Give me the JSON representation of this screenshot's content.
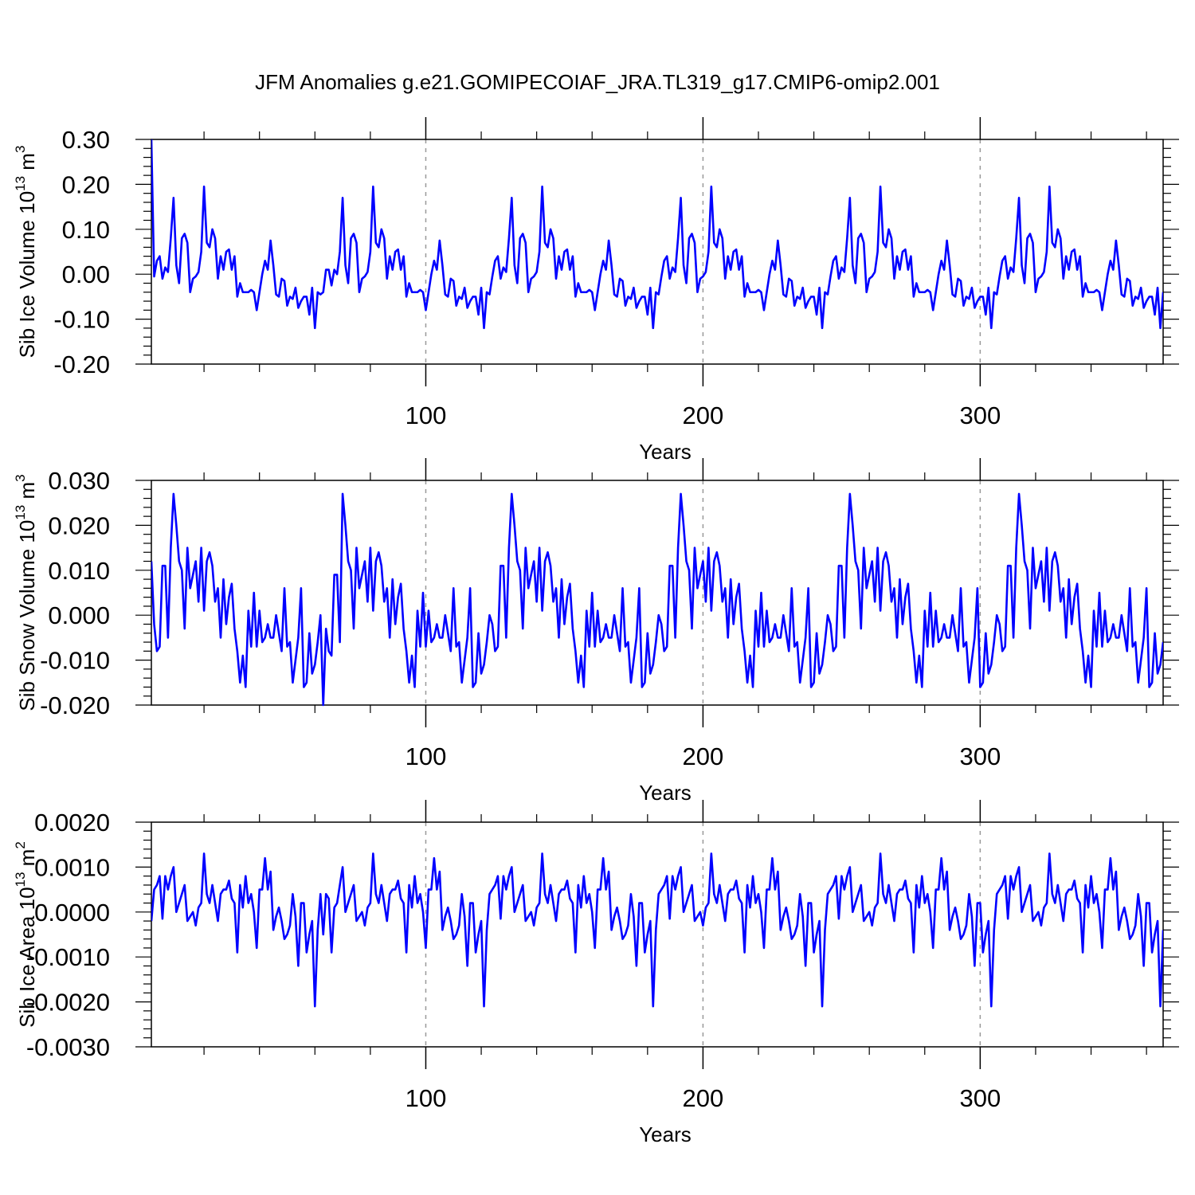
{
  "title": "JFM Anomalies g.e21.GOMIPECOIAF_JRA.TL319_g17.CMIP6-omip2.001",
  "chart_data": [
    {
      "type": "line",
      "ylabel": "Sib Ice Volume 10",
      "ylabel_sup": "13",
      "ylabel_unit": "m",
      "ylabel_unit_sup": "3",
      "xlabel": "Years",
      "xlim": [
        1,
        366
      ],
      "ylim": [
        -0.2,
        0.3
      ],
      "yticks": [
        0.3,
        0.2,
        0.1,
        0.0,
        -0.1,
        -0.2
      ],
      "ytick_labels": [
        "0.30",
        "0.20",
        "0.10",
        "0.00",
        "-0.10",
        "-0.20"
      ],
      "xticks": [
        100,
        200,
        300
      ],
      "xtick_labels": [
        "100",
        "200",
        "300"
      ],
      "color": "#0000ff",
      "base_cycle": [
        0.3,
        -0.005,
        0.03,
        0.04,
        -0.01,
        0.015,
        0.005,
        0.08,
        0.17,
        0.02,
        -0.02,
        0.08,
        0.09,
        0.07,
        -0.04,
        -0.01,
        -0.005,
        0.005,
        0.05,
        0.195,
        0.07,
        0.06,
        0.1,
        0.08,
        -0.01,
        0.04,
        0.01,
        0.05,
        0.055,
        0.01,
        0.04,
        -0.05,
        -0.02,
        -0.04,
        -0.04,
        -0.04,
        -0.035,
        -0.04,
        -0.08,
        -0.04,
        0.0,
        0.03,
        0.01,
        0.075,
        0.02,
        -0.045,
        -0.05,
        -0.01,
        -0.015,
        -0.07,
        -0.05,
        -0.055,
        -0.03,
        -0.075,
        -0.06,
        -0.05,
        -0.05,
        -0.09,
        -0.03,
        -0.12,
        -0.04,
        -0.045,
        -0.04,
        0.01,
        0.01,
        -0.025,
        0.01,
        0.0,
        0.05
      ],
      "year_notes": "Values for years 70-366 repeat the base_cycle pattern with period 61 years (series begins at year 1)."
    },
    {
      "type": "line",
      "ylabel": "Sib Snow Volume 10",
      "ylabel_sup": "13",
      "ylabel_unit": "m",
      "ylabel_unit_sup": "3",
      "xlabel": "Years",
      "xlim": [
        1,
        366
      ],
      "ylim": [
        -0.02,
        0.03
      ],
      "yticks": [
        0.03,
        0.02,
        0.01,
        0.0,
        -0.01,
        -0.02
      ],
      "ytick_labels": [
        "0.030",
        "0.020",
        "0.010",
        "0.000",
        "-0.010",
        "-0.020"
      ],
      "xticks": [
        100,
        200,
        300
      ],
      "xtick_labels": [
        "100",
        "200",
        "300"
      ],
      "color": "#0000ff",
      "base_cycle": [
        0.012,
        -0.002,
        -0.008,
        -0.007,
        0.011,
        0.011,
        -0.005,
        0.015,
        0.027,
        0.02,
        0.012,
        0.01,
        -0.003,
        0.015,
        0.006,
        0.009,
        0.012,
        0.003,
        0.015,
        0.001,
        0.012,
        0.014,
        0.011,
        0.003,
        0.006,
        -0.005,
        0.008,
        -0.002,
        0.004,
        0.007,
        -0.003,
        -0.008,
        -0.015,
        -0.009,
        -0.016,
        0.001,
        -0.007,
        0.005,
        -0.007,
        0.001,
        -0.006,
        -0.005,
        -0.002,
        -0.005,
        -0.005,
        0.0,
        -0.004,
        -0.008,
        0.006,
        -0.007,
        -0.006,
        -0.015,
        -0.01,
        -0.005,
        0.006,
        -0.016,
        -0.015,
        -0.004,
        -0.013,
        -0.011,
        -0.006,
        0.0,
        -0.02,
        -0.003,
        -0.008,
        -0.009,
        0.009,
        0.009,
        -0.006
      ],
      "year_notes": "Values repeat with period 61 years across years 1-366."
    },
    {
      "type": "line",
      "ylabel": "Sib Ice Area 10",
      "ylabel_sup": "13",
      "ylabel_unit": "m",
      "ylabel_unit_sup": "2",
      "xlabel": "Years",
      "xlim": [
        1,
        366
      ],
      "ylim": [
        -0.003,
        0.002
      ],
      "yticks": [
        0.002,
        0.001,
        0.0,
        -0.001,
        -0.002,
        -0.003
      ],
      "ytick_labels": [
        "0.0020",
        "0.0010",
        "0.0000",
        "-0.0010",
        "-0.0020",
        "-0.0030"
      ],
      "xticks": [
        100,
        200,
        300
      ],
      "xtick_labels": [
        "100",
        "200",
        "300"
      ],
      "color": "#0000ff",
      "base_cycle": [
        -0.0002,
        0.0005,
        0.0006,
        0.0008,
        -0.00015,
        0.0008,
        0.0005,
        0.0008,
        0.001,
        0.0,
        0.0002,
        0.0004,
        0.0006,
        -0.0002,
        -0.0001,
        0.0,
        -0.0003,
        0.0001,
        0.0002,
        0.0013,
        0.0004,
        0.0002,
        0.0006,
        0.0002,
        -0.0002,
        0.0004,
        0.0005,
        0.0005,
        0.0007,
        0.0003,
        0.0002,
        -0.0009,
        0.0006,
        0.0001,
        0.0008,
        0.0002,
        0.0004,
        0.0,
        -0.0008,
        0.0005,
        0.0005,
        0.0012,
        0.0005,
        0.0009,
        -0.0004,
        -0.0001,
        0.0001,
        -0.0002,
        -0.0006,
        -0.0005,
        -0.0003,
        0.0004,
        -0.0001,
        -0.0012,
        0.0002,
        0.0002,
        -0.0009,
        -0.0005,
        -0.0002,
        -0.0021,
        -0.0004,
        0.0004,
        -0.0005,
        0.0004,
        0.0003,
        -0.0009,
        0.0001,
        0.0002,
        0.0006
      ],
      "year_notes": "Values repeat with period 61 years across years 1-366."
    }
  ]
}
